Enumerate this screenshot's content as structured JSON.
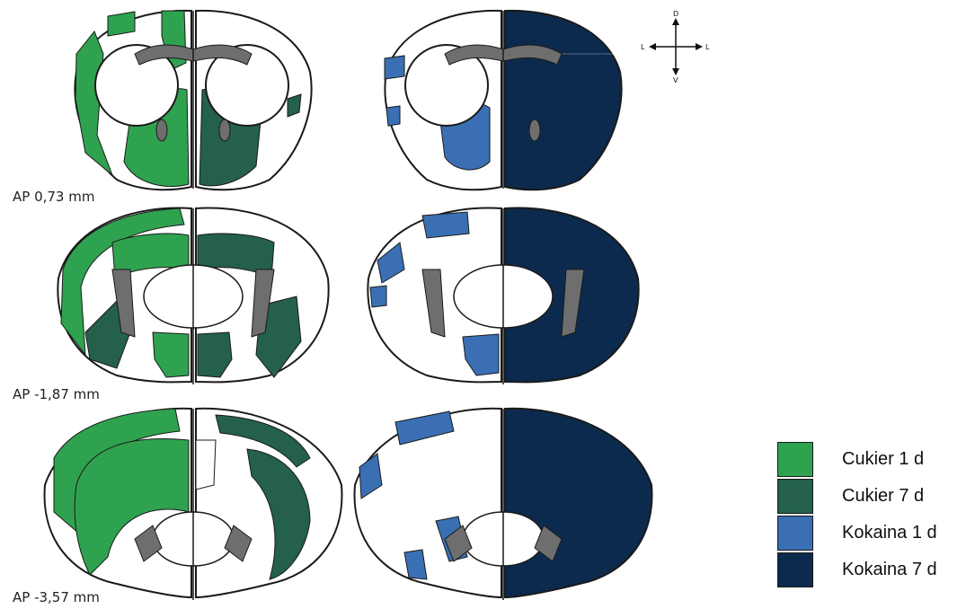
{
  "sections": [
    {
      "label": "AP 0,73 mm"
    },
    {
      "label": "AP -1,87 mm"
    },
    {
      "label": "AP -3,57 mm"
    }
  ],
  "compass": {
    "dorsal": "D",
    "ventral": "V",
    "left": "L",
    "right": "L"
  },
  "legend": [
    {
      "label": "Cukier 1 d",
      "color": "#2fa24f"
    },
    {
      "label": "Cukier 7 d",
      "color": "#24604a"
    },
    {
      "label": "Kokaina 1 d",
      "color": "#3a6fb3"
    },
    {
      "label": "Kokaina 7 d",
      "color": "#0c2a4d"
    }
  ],
  "colors": {
    "ventricle_fill": "#6e6e6e",
    "outline": "#1a1a1a",
    "background": "#ffffff"
  }
}
